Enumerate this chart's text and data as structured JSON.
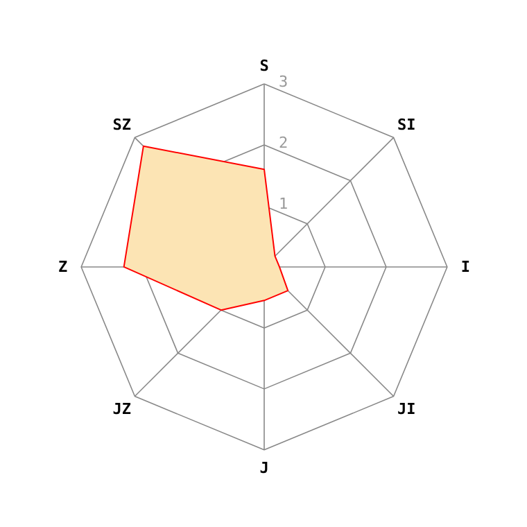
{
  "chart_data": {
    "type": "radar",
    "categories": [
      "S",
      "SI",
      "I",
      "JI",
      "J",
      "JZ",
      "Z",
      "SZ"
    ],
    "series": [
      {
        "color": "#fce4b4",
        "values": [
          1.6,
          0.25,
          0.25,
          0.55,
          0.55,
          1.0,
          2.3,
          2.8
        ]
      }
    ],
    "ylim": [
      0,
      3
    ],
    "yticks": [
      1,
      2,
      3
    ],
    "grid": true
  }
}
